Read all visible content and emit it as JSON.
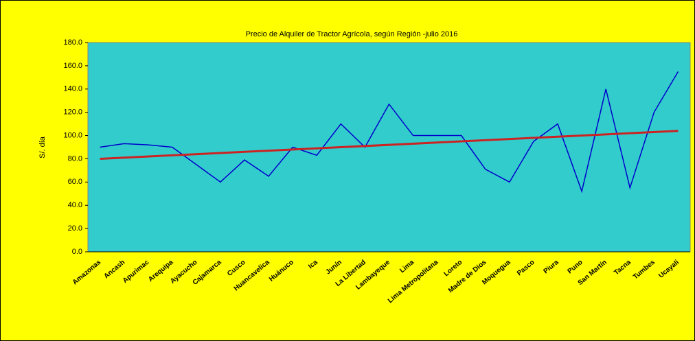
{
  "chart_data": {
    "type": "line",
    "title": "Precio de Alquiler de Tractor Agrícola, según Región -julio  2016",
    "y_label": "S/. día",
    "categories": [
      "Amazonas",
      "Ancash",
      "Apurimac",
      "Arequipa",
      "Ayacucho",
      "Cajamarca",
      "Cusco",
      "Huancavelica",
      "Huánuco",
      "Ica",
      "Junín",
      "La Libertad",
      "Lambayeque",
      "Lima",
      "Lima Metropolitana",
      "Loreto",
      "Madre de Dios",
      "Moquegua",
      "Pasco",
      "Piura",
      "Puno",
      "San Martín",
      "Tacna",
      "Tumbes",
      "Ucayali"
    ],
    "values": [
      90,
      93,
      92,
      90,
      75,
      60,
      79,
      65,
      90,
      83,
      110,
      90,
      127,
      100,
      100,
      100,
      71,
      60,
      95,
      110,
      52,
      140,
      55,
      120,
      155
    ],
    "color": "#0000cc",
    "trend": {
      "start": 80,
      "end": 104,
      "color": "#cc2222"
    },
    "ylim": [
      0,
      180
    ],
    "yticks": [
      {
        "value": 0,
        "label": "0.0"
      },
      {
        "value": 20,
        "label": "20.0"
      },
      {
        "value": 40,
        "label": "40.0"
      },
      {
        "value": 60,
        "label": "60.0"
      },
      {
        "value": 80,
        "label": "80.0"
      },
      {
        "value": 100,
        "label": "100.0"
      },
      {
        "value": 120,
        "label": "120.0"
      },
      {
        "value": 140,
        "label": "140.0"
      },
      {
        "value": 160,
        "label": "160.0"
      },
      {
        "value": 180,
        "label": "180.0"
      }
    ],
    "plot_color": "#33cccc",
    "background": "#ffff00"
  }
}
